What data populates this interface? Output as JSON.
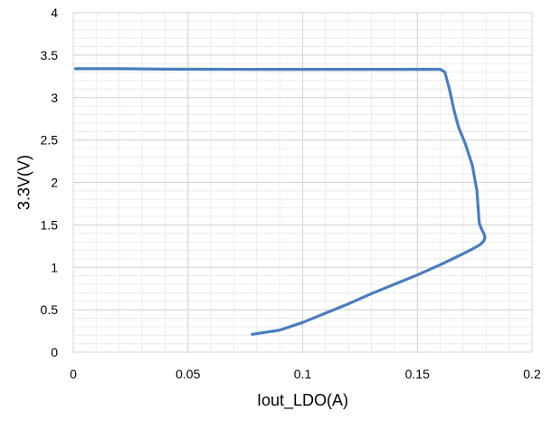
{
  "chart_data": {
    "type": "scatter",
    "title": "",
    "xlabel": "Iout_LDO(A)",
    "ylabel": "3.3V(V)",
    "xlim": [
      0,
      0.2
    ],
    "ylim": [
      0,
      4
    ],
    "x_ticks": [
      "0",
      "0.05",
      "0.1",
      "0.15",
      "0.2"
    ],
    "y_ticks": [
      "0",
      "0.5",
      "1",
      "1.5",
      "2",
      "2.5",
      "3",
      "3.5",
      "4"
    ],
    "x_tick_values": [
      0,
      0.05,
      0.1,
      0.15,
      0.2
    ],
    "y_tick_values": [
      0,
      0.5,
      1,
      1.5,
      2,
      2.5,
      3,
      3.5,
      4
    ],
    "major_grid": true,
    "minor_grid": true,
    "minor_x_step": 0.01,
    "minor_y_step": 0.1,
    "legend": "none",
    "line_color": "#4a7ebb",
    "grid_major_color": "#d4d4d4",
    "grid_minor_color": "#ececec",
    "series": [
      {
        "x": [
          0.001,
          0.02,
          0.04,
          0.06,
          0.08,
          0.1,
          0.12,
          0.14,
          0.16,
          0.162,
          0.164,
          0.166,
          0.168,
          0.171,
          0.174,
          0.176,
          0.177,
          0.178,
          0.179,
          0.1795,
          0.179,
          0.1775,
          0.175,
          0.17,
          0.16,
          0.15,
          0.14,
          0.13,
          0.12,
          0.11,
          0.1,
          0.09,
          0.078
        ],
        "y": [
          3.34,
          3.34,
          3.335,
          3.333,
          3.332,
          3.332,
          3.332,
          3.332,
          3.333,
          3.3,
          3.1,
          2.85,
          2.65,
          2.45,
          2.2,
          1.9,
          1.52,
          1.45,
          1.4,
          1.35,
          1.31,
          1.27,
          1.23,
          1.16,
          1.03,
          0.91,
          0.8,
          0.69,
          0.57,
          0.46,
          0.35,
          0.26,
          0.21
        ]
      }
    ]
  }
}
